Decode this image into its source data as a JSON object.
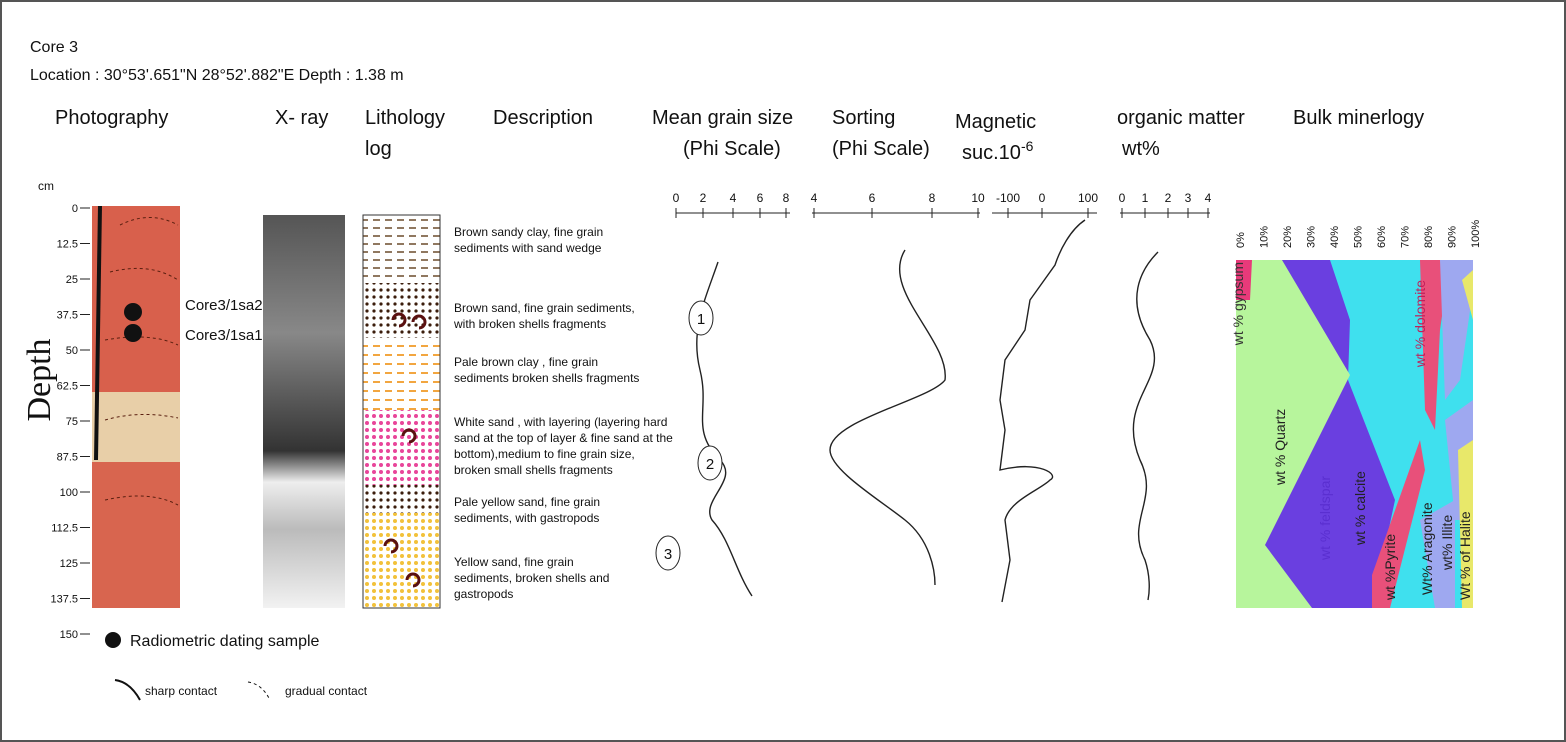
{
  "header": {
    "core": "Core 3",
    "location": "Location : 30°53'.651\"N 28°52'.882\"E Depth : 1.38 m"
  },
  "headings": {
    "photography": "Photography",
    "xray": "X- ray",
    "lithology": [
      "Lithology",
      "log"
    ],
    "description": "Description",
    "grain_size": [
      "Mean grain size",
      "(Phi Scale)"
    ],
    "sorting": [
      "Sorting",
      "(Phi Scale)"
    ],
    "magnetic": {
      "text": "Magnetic",
      "line2": "suc.10",
      "exponent": "-6"
    },
    "organic": [
      "organic matter",
      "wt%"
    ],
    "mineralogy": "Bulk minerlogy"
  },
  "depth_axis": {
    "unit": "cm",
    "title": "Depth",
    "ticks": [
      "0",
      "12.5",
      "25",
      "37.5",
      "50",
      "62.5",
      "75",
      "87.5",
      "100",
      "112.5",
      "125",
      "137.5",
      "150"
    ]
  },
  "samples": [
    "Core3/1sa2",
    "Core3/1sa1"
  ],
  "descriptions": [
    [
      "Brown sandy clay, fine grain",
      "sediments with sand wedge"
    ],
    [
      "Brown sand, fine grain sediments,",
      "with broken shells fragments"
    ],
    [
      "Pale brown  clay , fine grain",
      "sediments broken shells fragments"
    ],
    [
      "White sand , with layering (layering hard",
      "sand at the top of layer & fine sand at the",
      "bottom),medium to fine grain size,",
      "broken small shells fragments"
    ],
    [
      "Pale yellow sand, fine grain",
      "sediments,  with gastropods"
    ],
    [
      "Yellow sand, fine grain",
      "sediments, broken shells and",
      "gastropods"
    ]
  ],
  "scales": {
    "grain_size": [
      "0",
      "2",
      "4",
      "6",
      "8"
    ],
    "sorting": [
      "4",
      "6",
      "8",
      "10"
    ],
    "magnetic": [
      "-100",
      "0",
      "100"
    ],
    "organic": [
      "0",
      "1",
      "2",
      "3",
      "4"
    ],
    "mineralogy": [
      "0%",
      "10%",
      "20%",
      "30%",
      "40%",
      "50%",
      "60%",
      "70%",
      "80%",
      "90%",
      "100%"
    ]
  },
  "markers": [
    "1",
    "2",
    "3"
  ],
  "minerals": [
    "wt % gypsum",
    "wt % Quartz",
    "wt % feldspar",
    "wt % calcite",
    "wt %Pyrite",
    "Wt% Aragonite",
    "wt% Illite",
    "Wt % of Halite",
    "wt % dolomite"
  ],
  "legend": {
    "dating": "Radiometric dating sample",
    "sharp": "sharp contact",
    "gradual": "gradual contact"
  }
}
